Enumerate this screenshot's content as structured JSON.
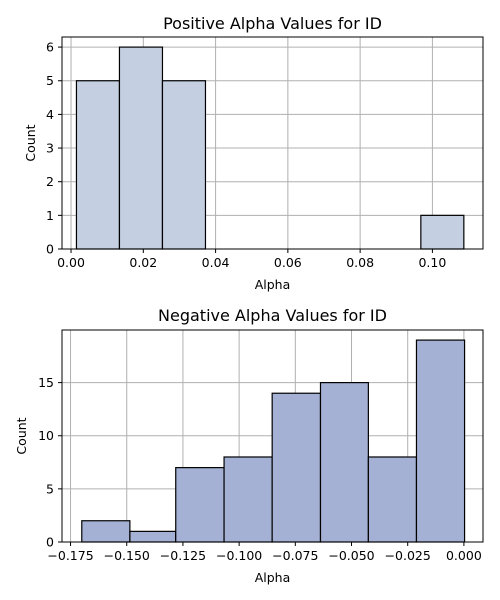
{
  "chart_data": [
    {
      "type": "bar",
      "title": "Positive Alpha Values for ID",
      "xlabel": "Alpha",
      "ylabel": "Count",
      "xlim": [
        -0.0025,
        0.114
      ],
      "ylim": [
        0,
        6.3
      ],
      "xticks": [
        0.0,
        0.02,
        0.04,
        0.06,
        0.08,
        0.1
      ],
      "xtick_labels": [
        "0.00",
        "0.02",
        "0.04",
        "0.06",
        "0.08",
        "0.10"
      ],
      "yticks": [
        0,
        1,
        2,
        3,
        4,
        5,
        6
      ],
      "ytick_labels": [
        "0",
        "1",
        "2",
        "3",
        "4",
        "5",
        "6"
      ],
      "bins": [
        {
          "x0": 0.0015,
          "x1": 0.0134,
          "count": 5
        },
        {
          "x0": 0.0134,
          "x1": 0.0253,
          "count": 6
        },
        {
          "x0": 0.0253,
          "x1": 0.0372,
          "count": 5
        },
        {
          "x0": 0.0372,
          "x1": 0.0491,
          "count": 0
        },
        {
          "x0": 0.0491,
          "x1": 0.061,
          "count": 0
        },
        {
          "x0": 0.061,
          "x1": 0.073,
          "count": 0
        },
        {
          "x0": 0.073,
          "x1": 0.0849,
          "count": 0
        },
        {
          "x0": 0.0849,
          "x1": 0.0968,
          "count": 0
        },
        {
          "x0": 0.0968,
          "x1": 0.1087,
          "count": 1
        }
      ],
      "color": "#c5cfe2",
      "grid": true
    },
    {
      "type": "bar",
      "title": "Negative Alpha Values for ID",
      "xlabel": "Alpha",
      "ylabel": "Count",
      "xlim": [
        -0.1788,
        0.0085
      ],
      "ylim": [
        0,
        19.95
      ],
      "xticks": [
        -0.175,
        -0.15,
        -0.125,
        -0.1,
        -0.075,
        -0.05,
        -0.025,
        0.0
      ],
      "xtick_labels": [
        "−0.175",
        "−0.150",
        "−0.125",
        "−0.100",
        "−0.075",
        "−0.050",
        "−0.025",
        "0.000"
      ],
      "yticks": [
        0,
        5,
        10,
        15
      ],
      "ytick_labels": [
        "0",
        "5",
        "10",
        "15"
      ],
      "bins": [
        {
          "x0": -0.17,
          "x1": -0.1486,
          "count": 2
        },
        {
          "x0": -0.1486,
          "x1": -0.1282,
          "count": 1
        },
        {
          "x0": -0.1282,
          "x1": -0.1067,
          "count": 7
        },
        {
          "x0": -0.1067,
          "x1": -0.0853,
          "count": 8
        },
        {
          "x0": -0.0853,
          "x1": -0.0638,
          "count": 14
        },
        {
          "x0": -0.0638,
          "x1": -0.0425,
          "count": 15
        },
        {
          "x0": -0.0425,
          "x1": -0.0211,
          "count": 8
        },
        {
          "x0": -0.0211,
          "x1": 0.0003,
          "count": 19
        }
      ],
      "color": "#a4b1d5",
      "grid": true
    }
  ]
}
